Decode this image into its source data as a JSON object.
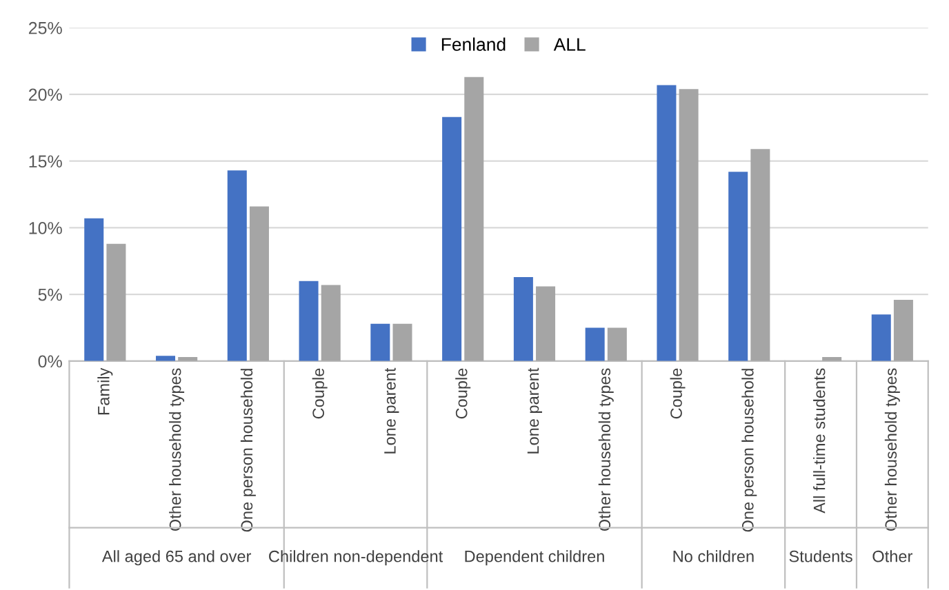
{
  "chart_data": {
    "type": "bar",
    "categories": [
      "Family",
      "Other household types",
      "One person household",
      "Couple",
      "Lone parent",
      "Couple",
      "Lone parent",
      "Other household types",
      "Couple",
      "One person household",
      "All full-time students",
      "Other household types"
    ],
    "series": [
      {
        "name": "Fenland",
        "color": "#4472c4",
        "values": [
          10.7,
          0.4,
          14.3,
          6.0,
          2.8,
          18.3,
          6.3,
          2.5,
          20.7,
          14.2,
          0,
          3.5
        ]
      },
      {
        "name": "ALL",
        "color": "#a5a5a5",
        "values": [
          8.8,
          0.3,
          11.6,
          5.7,
          2.8,
          21.3,
          5.6,
          2.5,
          20.4,
          15.9,
          0.3,
          4.6
        ]
      }
    ],
    "annotations": [
      "All aged 65 and over",
      "Children non-dependent",
      "Dependent children",
      "No children",
      "Students",
      "Other"
    ],
    "ylim": [
      0,
      25
    ],
    "yticks": [
      {
        "value": 0,
        "label": "0%"
      },
      {
        "value": 5,
        "label": "5%"
      },
      {
        "value": 10,
        "label": "10%"
      },
      {
        "value": 15,
        "label": "15%"
      },
      {
        "value": 20,
        "label": "20%"
      },
      {
        "value": 25,
        "label": "25%"
      }
    ],
    "grid": "y",
    "legend": "top"
  }
}
